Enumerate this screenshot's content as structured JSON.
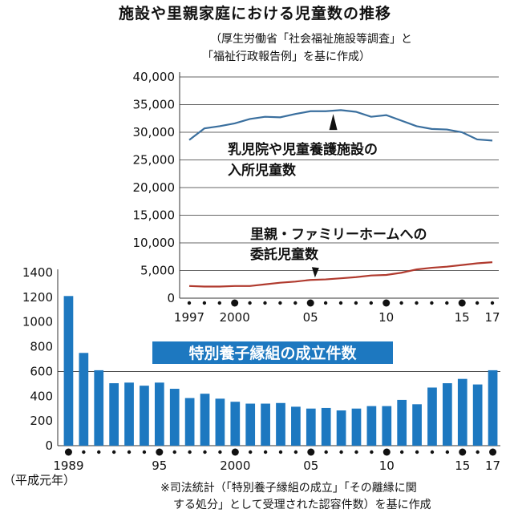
{
  "title": "施設や里親家庭における児童数の推移",
  "source": {
    "line1": "（厚生労働省「社会福祉施設等調査」と",
    "line2": "「福祉行政報告例」を基に作成）"
  },
  "note": {
    "line1": "※司法統計（「特別養子縁組の成立」「その離縁に関",
    "line2": "する処分」として受理された認容件数）を基に作成"
  },
  "colors": {
    "facility_line": "#3a6f9e",
    "foster_line": "#b03a2e",
    "bar": "#1d78c0",
    "label_box": "#1d78c0",
    "label_text": "#ffffff",
    "grid": "#333333"
  },
  "chart_data": [
    {
      "type": "line",
      "ylim": [
        0,
        40000
      ],
      "yticks": [
        0,
        5000,
        10000,
        15000,
        20000,
        25000,
        30000,
        35000,
        40000
      ],
      "ytick_labels": [
        "0",
        "5,000",
        "10,000",
        "15,000",
        "20,000",
        "25,000",
        "30,000",
        "35,000",
        "40,000"
      ],
      "x": [
        1997,
        1998,
        1999,
        2000,
        2001,
        2002,
        2003,
        2004,
        2005,
        2006,
        2007,
        2008,
        2009,
        2010,
        2011,
        2012,
        2013,
        2014,
        2015,
        2016,
        2017
      ],
      "xtick_labels": [
        {
          "x": 1997,
          "label": "1997"
        },
        {
          "x": 2000,
          "label": "2000"
        },
        {
          "x": 2005,
          "label": "05"
        },
        {
          "x": 2010,
          "label": "10"
        },
        {
          "x": 2015,
          "label": "15"
        },
        {
          "x": 2017,
          "label": "17"
        }
      ],
      "series": [
        {
          "name": "乳児院や児童養護施設の入所児童数",
          "label_lines": [
            "乳児院や児童養護施設の",
            "入所児童数"
          ],
          "x": [
            1997,
            1998,
            1999,
            2000,
            2001,
            2002,
            2003,
            2004,
            2005,
            2006,
            2007,
            2008,
            2009,
            2010,
            2011,
            2012,
            2013,
            2014,
            2015,
            2016,
            2017
          ],
          "values": [
            28600,
            30700,
            31100,
            31600,
            32400,
            32800,
            32700,
            33300,
            33800,
            33800,
            34000,
            33700,
            32800,
            33100,
            32100,
            31100,
            30600,
            30500,
            30000,
            28700,
            28500
          ]
        },
        {
          "name": "里親・ファミリーホームへの委託児童数",
          "label_lines": [
            "里親・ファミリーホームへの",
            "委託児童数"
          ],
          "x": [
            1997,
            1998,
            1999,
            2000,
            2001,
            2002,
            2003,
            2004,
            2005,
            2006,
            2007,
            2008,
            2009,
            2010,
            2011,
            2012,
            2013,
            2014,
            2015,
            2016,
            2017
          ],
          "values": [
            2200,
            2100,
            2100,
            2200,
            2200,
            2500,
            2800,
            3000,
            3300,
            3400,
            3600,
            3800,
            4100,
            4200,
            4600,
            5200,
            5500,
            5700,
            6000,
            6300,
            6500
          ]
        }
      ]
    },
    {
      "type": "bar",
      "title": "特別養子縁組の成立件数",
      "ylim": [
        0,
        1400
      ],
      "yticks": [
        0,
        200,
        400,
        600,
        800,
        1000,
        1200,
        1400
      ],
      "ytick_labels": [
        "0",
        "200",
        "400",
        "600",
        "800",
        "1000",
        "1200",
        "1400"
      ],
      "categories": [
        1989,
        1990,
        1991,
        1992,
        1993,
        1994,
        1995,
        1996,
        1997,
        1998,
        1999,
        2000,
        2001,
        2002,
        2003,
        2004,
        2005,
        2006,
        2007,
        2008,
        2009,
        2010,
        2011,
        2012,
        2013,
        2014,
        2015,
        2016,
        2017
      ],
      "values": [
        1210,
        750,
        610,
        505,
        510,
        485,
        510,
        460,
        385,
        420,
        380,
        355,
        340,
        340,
        345,
        315,
        300,
        305,
        285,
        300,
        320,
        320,
        370,
        335,
        470,
        505,
        540,
        495,
        610
      ],
      "xtick_labels": [
        {
          "x": 1989,
          "label": "1989"
        },
        {
          "x": 1995,
          "label": "95"
        },
        {
          "x": 2000,
          "label": "2000"
        },
        {
          "x": 2005,
          "label": "05"
        },
        {
          "x": 2010,
          "label": "10"
        },
        {
          "x": 2015,
          "label": "15"
        },
        {
          "x": 2017,
          "label": "17"
        }
      ],
      "x_sublabel": "（平成元年）"
    }
  ]
}
